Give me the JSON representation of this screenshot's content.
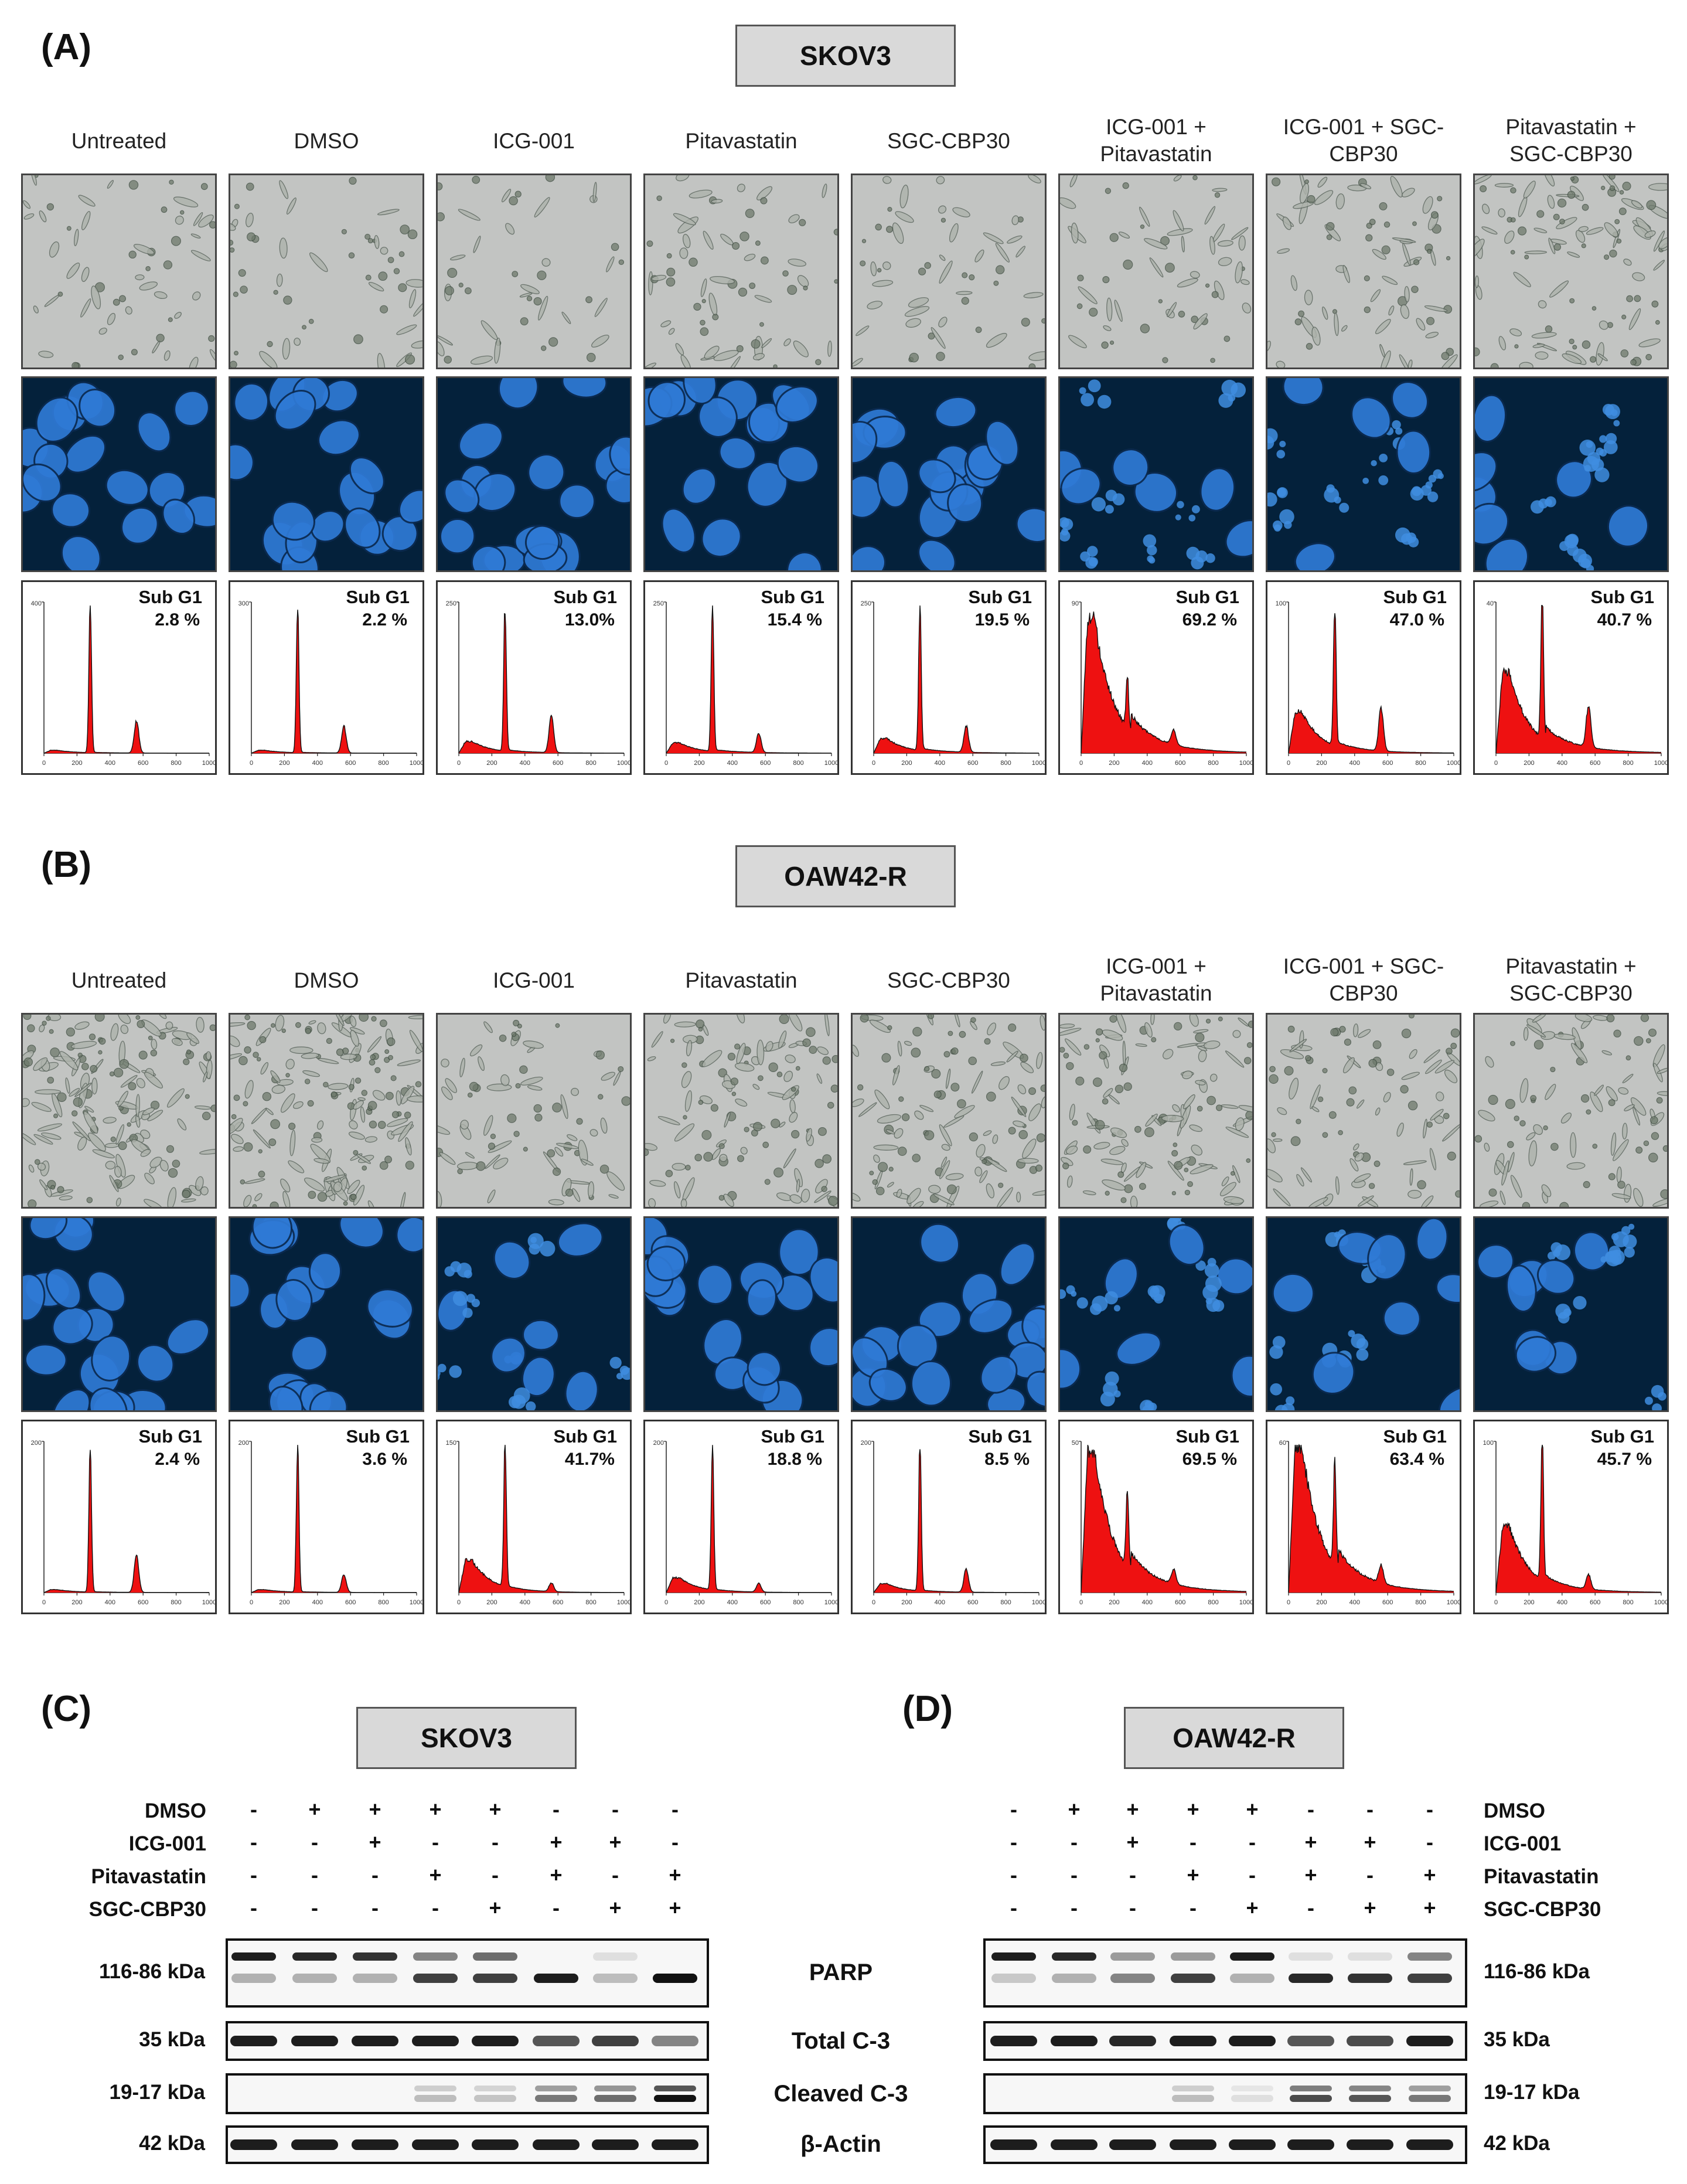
{
  "panel_a": {
    "label": "(A)",
    "cell_line": "SKOV3",
    "conditions": [
      "Untreated",
      "DMSO",
      "ICG-001",
      "Pitavastatin",
      "SGC-CBP30",
      "ICG-001 + Pitavastatin",
      "ICG-001 + SGC-CBP30",
      "Pitavastatin + SGC-CBP30"
    ],
    "histograms": [
      {
        "title": "Sub G1",
        "value": "2.8 %",
        "ymax": "400"
      },
      {
        "title": "Sub G1",
        "value": "2.2 %",
        "ymax": "300"
      },
      {
        "title": "Sub G1",
        "value": "13.0%",
        "ymax": "250"
      },
      {
        "title": "Sub G1",
        "value": "15.4 %",
        "ymax": "250"
      },
      {
        "title": "Sub G1",
        "value": "19.5 %",
        "ymax": "250"
      },
      {
        "title": "Sub G1",
        "value": "69.2 %",
        "ymax": "90"
      },
      {
        "title": "Sub G1",
        "value": "47.0 %",
        "ymax": "100"
      },
      {
        "title": "Sub G1",
        "value": "40.7 %",
        "ymax": "40"
      }
    ]
  },
  "panel_b": {
    "label": "(B)",
    "cell_line": "OAW42-R",
    "conditions": [
      "Untreated",
      "DMSO",
      "ICG-001",
      "Pitavastatin",
      "SGC-CBP30",
      "ICG-001 + Pitavastatin",
      "ICG-001 + SGC-CBP30",
      "Pitavastatin + SGC-CBP30"
    ],
    "histograms": [
      {
        "title": "Sub G1",
        "value": "2.4 %",
        "ymax": "200"
      },
      {
        "title": "Sub G1",
        "value": "3.6 %",
        "ymax": "200"
      },
      {
        "title": "Sub G1",
        "value": "41.7%",
        "ymax": "150"
      },
      {
        "title": "Sub G1",
        "value": "18.8 %",
        "ymax": "200"
      },
      {
        "title": "Sub G1",
        "value": "8.5 %",
        "ymax": "200"
      },
      {
        "title": "Sub G1",
        "value": "69.5 %",
        "ymax": "50"
      },
      {
        "title": "Sub G1",
        "value": "63.4 %",
        "ymax": "60"
      },
      {
        "title": "Sub G1",
        "value": "45.7 %",
        "ymax": "100"
      }
    ]
  },
  "histogram_x_ticks": [
    "0",
    "200",
    "400",
    "600",
    "800",
    "1000"
  ],
  "panel_c": {
    "label": "(C)",
    "cell_line": "SKOV3",
    "treatment_rows": [
      {
        "name": "DMSO",
        "signs": [
          "-",
          "+",
          "+",
          "+",
          "+",
          "-",
          "-",
          "-"
        ]
      },
      {
        "name": "ICG-001",
        "signs": [
          "-",
          "-",
          "+",
          "-",
          "-",
          "+",
          "+",
          "-"
        ]
      },
      {
        "name": "Pitavastatin",
        "signs": [
          "-",
          "-",
          "-",
          "+",
          "-",
          "+",
          "-",
          "+"
        ]
      },
      {
        "name": "SGC-CBP30",
        "signs": [
          "-",
          "-",
          "-",
          "-",
          "+",
          "-",
          "+",
          "+"
        ]
      }
    ],
    "blot_sizes": [
      "116-86 kDa",
      "35 kDa",
      "19-17 kDa",
      "42 kDa"
    ]
  },
  "panel_d": {
    "label": "(D)",
    "cell_line": "OAW42-R",
    "treatment_rows": [
      {
        "name": "DMSO",
        "signs": [
          "-",
          "+",
          "+",
          "+",
          "+",
          "-",
          "-",
          "-"
        ]
      },
      {
        "name": "ICG-001",
        "signs": [
          "-",
          "-",
          "+",
          "-",
          "-",
          "+",
          "+",
          "-"
        ]
      },
      {
        "name": "Pitavastatin",
        "signs": [
          "-",
          "-",
          "-",
          "+",
          "-",
          "+",
          "-",
          "+"
        ]
      },
      {
        "name": "SGC-CBP30",
        "signs": [
          "-",
          "-",
          "-",
          "-",
          "+",
          "-",
          "+",
          "+"
        ]
      }
    ],
    "blot_sizes": [
      "116-86 kDa",
      "35 kDa",
      "19-17 kDa",
      "42 kDa"
    ]
  },
  "band_names": [
    "PARP",
    "Total C-3",
    "Cleaved C-3",
    "β-Actin"
  ]
}
